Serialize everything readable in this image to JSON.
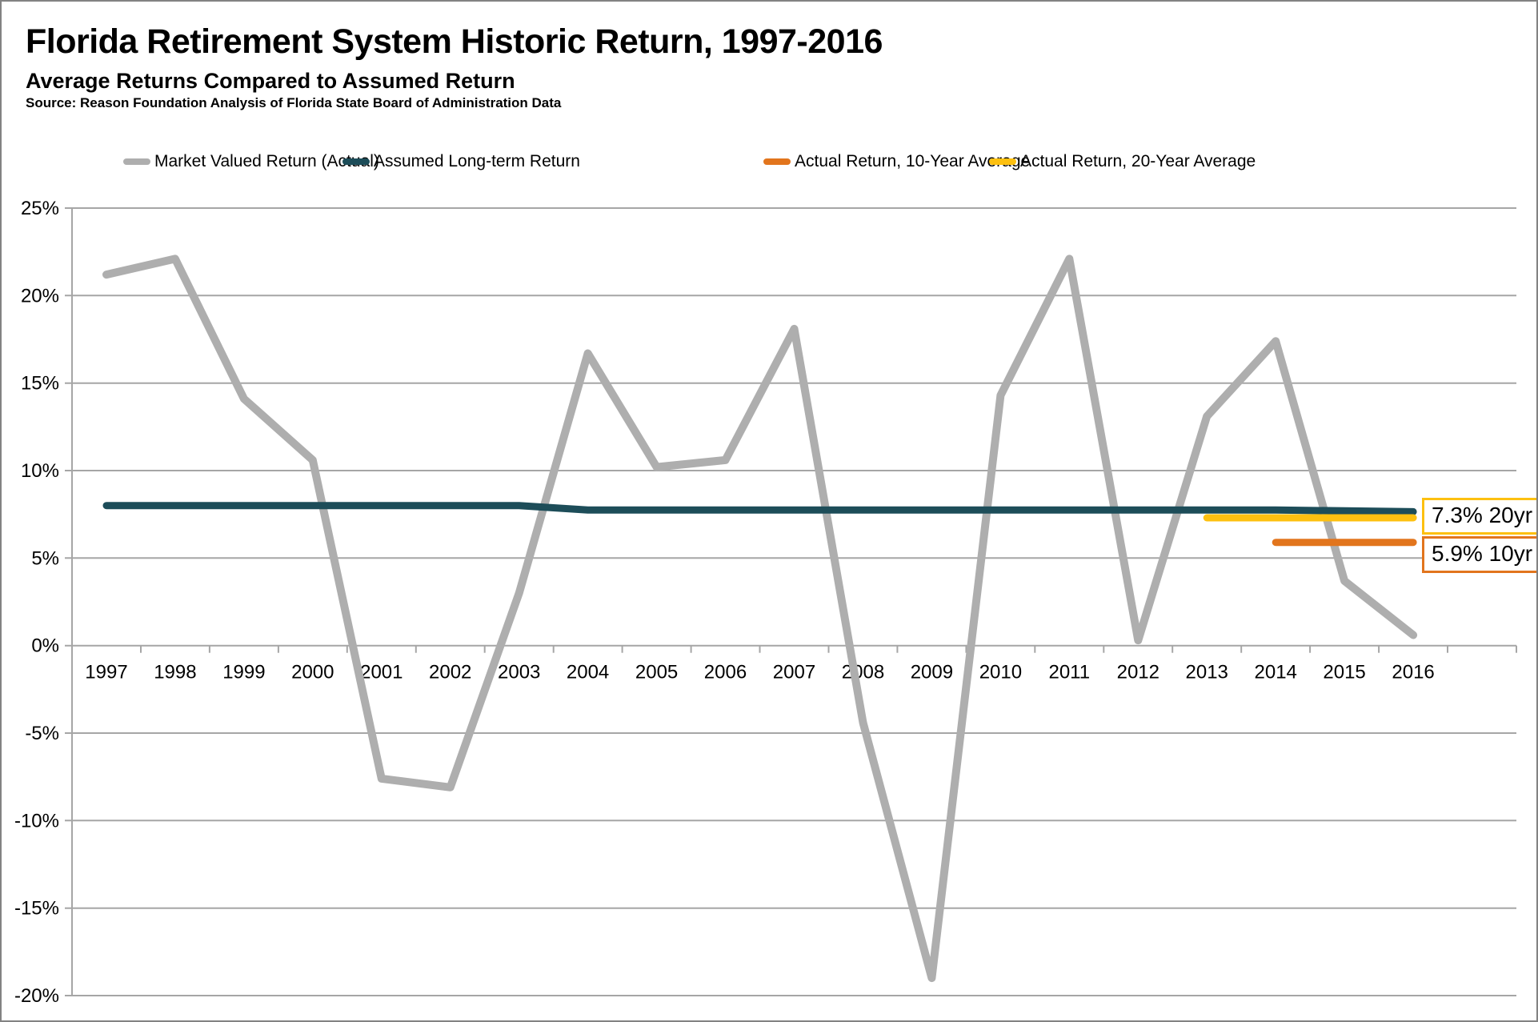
{
  "header": {
    "title": "Florida Retirement System Historic Return, 1997-2016",
    "subtitle": "Average Returns Compared to Assumed Return",
    "source": "Source: Reason Foundation Analysis of Florida State Board of Administration Data"
  },
  "legend": [
    {
      "label": "Market Valued Return (Actual)",
      "color": "#aeaeae"
    },
    {
      "label": "Assumed Long-term Return",
      "color": "#1d4d59"
    },
    {
      "label": "Actual Return, 10-Year Average",
      "color": "#e2751d"
    },
    {
      "label": "Actual Return, 20-Year Average",
      "color": "#fdc010"
    }
  ],
  "annotations": [
    {
      "label": "7.3% 20yr",
      "border_color": "#fdc010"
    },
    {
      "label": "5.9% 10yr",
      "border_color": "#e2751d"
    }
  ],
  "chart_data": {
    "type": "line",
    "title": "Florida Retirement System Historic Return, 1997-2016",
    "x": [
      1997,
      1998,
      1999,
      2000,
      2001,
      2002,
      2003,
      2004,
      2005,
      2006,
      2007,
      2008,
      2009,
      2010,
      2011,
      2012,
      2013,
      2014,
      2015,
      2016
    ],
    "series": [
      {
        "name": "Market Valued Return (Actual)",
        "color": "#aeaeae",
        "width": 10,
        "values": [
          21.2,
          22.1,
          14.1,
          10.6,
          -7.6,
          -8.1,
          3.0,
          16.7,
          10.2,
          10.6,
          18.1,
          -4.4,
          -19.0,
          14.3,
          22.1,
          0.3,
          13.1,
          17.4,
          3.7,
          0.6
        ]
      },
      {
        "name": "Assumed Long-term Return",
        "color": "#1d4d59",
        "width": 9,
        "values": [
          8,
          8,
          8,
          8,
          8,
          8,
          8,
          7.75,
          7.75,
          7.75,
          7.75,
          7.75,
          7.75,
          7.75,
          7.75,
          7.75,
          7.75,
          7.75,
          7.7,
          7.65
        ]
      },
      {
        "name": "Actual Return, 20-Year Average",
        "color": "#fdc010",
        "width": 9,
        "values": [
          null,
          null,
          null,
          null,
          null,
          null,
          null,
          null,
          null,
          null,
          null,
          null,
          null,
          null,
          null,
          null,
          7.3,
          7.3,
          7.3,
          7.3
        ]
      },
      {
        "name": "Actual Return, 10-Year Average",
        "color": "#e2751d",
        "width": 9,
        "values": [
          null,
          null,
          null,
          null,
          null,
          null,
          null,
          null,
          null,
          null,
          null,
          null,
          null,
          null,
          null,
          null,
          null,
          5.9,
          5.9,
          5.9
        ]
      }
    ],
    "ylim": [
      -20,
      25
    ],
    "ytick_step": 5,
    "ytick_suffix": "%",
    "grid": true,
    "legend_position": "top",
    "grid_color": "#a6a6a6",
    "label_color": "#000000"
  }
}
